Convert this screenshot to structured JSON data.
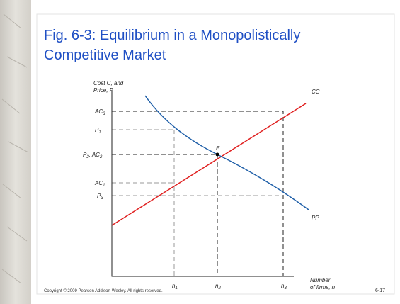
{
  "slide": {
    "title_lines": [
      "Fig. 6-3: Equilibrium in a Monopolistically",
      "Competitive Market"
    ],
    "footer": "Copyright © 2009 Pearson Addison-Wesley. All rights reserved.",
    "page_number": "6-17"
  },
  "diagram": {
    "y_axis_label": [
      "Cost C, and",
      "Price, P"
    ],
    "x_axis_label": [
      "Number",
      "of firms, n"
    ],
    "y_labels": {
      "ac3": [
        "AC",
        "3"
      ],
      "p1": [
        "P",
        "1"
      ],
      "p2ac2": [
        "P",
        "2",
        ", AC",
        "2"
      ],
      "ac1": [
        "AC",
        "1"
      ],
      "p3": [
        "P",
        "3"
      ]
    },
    "x_labels": {
      "n1": [
        "n",
        "1"
      ],
      "n2": [
        "n",
        "2"
      ],
      "n3": [
        "n",
        "3"
      ]
    },
    "curves": {
      "cc": "CC",
      "pp": "PP",
      "equilibrium": "E"
    }
  }
}
